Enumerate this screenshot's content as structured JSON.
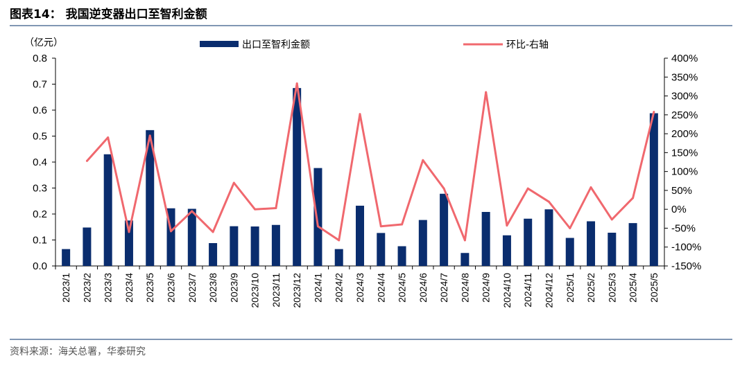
{
  "header": {
    "title": "图表14：  我国逆变器出口至智利金额"
  },
  "footer": {
    "source": "资料来源：海关总署，华泰研究"
  },
  "chart_data": {
    "type": "bar+line",
    "unit_left": "（亿元）",
    "categories": [
      "2023/1",
      "2023/2",
      "2023/3",
      "2023/4",
      "2023/5",
      "2023/6",
      "2023/7",
      "2023/8",
      "2023/9",
      "2023/10",
      "2023/11",
      "2023/12",
      "2024/1",
      "2024/2",
      "2024/3",
      "2024/4",
      "2024/5",
      "2024/6",
      "2024/7",
      "2024/8",
      "2024/9",
      "2024/10",
      "2024/11",
      "2024/12",
      "2025/1",
      "2025/2",
      "2025/3",
      "2025/4",
      "2025/5"
    ],
    "series": [
      {
        "name": "出口至智利金额",
        "type": "bar",
        "axis": "left",
        "color": "#0a2d6e",
        "values": [
          0.065,
          0.148,
          0.43,
          0.175,
          0.523,
          0.222,
          0.22,
          0.088,
          0.153,
          0.152,
          0.158,
          0.685,
          0.377,
          0.065,
          0.232,
          0.127,
          0.076,
          0.177,
          0.278,
          0.05,
          0.208,
          0.118,
          0.182,
          0.218,
          0.108,
          0.172,
          0.128,
          0.165,
          0.588
        ]
      },
      {
        "name": "环比-右轴",
        "type": "line",
        "axis": "right",
        "color": "#f0686e",
        "values": [
          null,
          128,
          190,
          -60,
          195,
          -58,
          -5,
          -60,
          70,
          0,
          3,
          333,
          -45,
          -82,
          252,
          -45,
          -40,
          130,
          55,
          -82,
          310,
          -43,
          55,
          20,
          -50,
          58,
          -27,
          30,
          258
        ]
      }
    ],
    "y_left": {
      "min": 0,
      "max": 0.8,
      "ticks": [
        "0.0",
        "0.1",
        "0.2",
        "0.3",
        "0.4",
        "0.5",
        "0.6",
        "0.7",
        "0.8"
      ]
    },
    "y_right": {
      "min": -150,
      "max": 400,
      "ticks": [
        "-150%",
        "-100%",
        "-50%",
        "0%",
        "50%",
        "100%",
        "150%",
        "200%",
        "250%",
        "300%",
        "350%",
        "400%"
      ]
    },
    "legend": {
      "placement": "top"
    },
    "grid": false
  }
}
